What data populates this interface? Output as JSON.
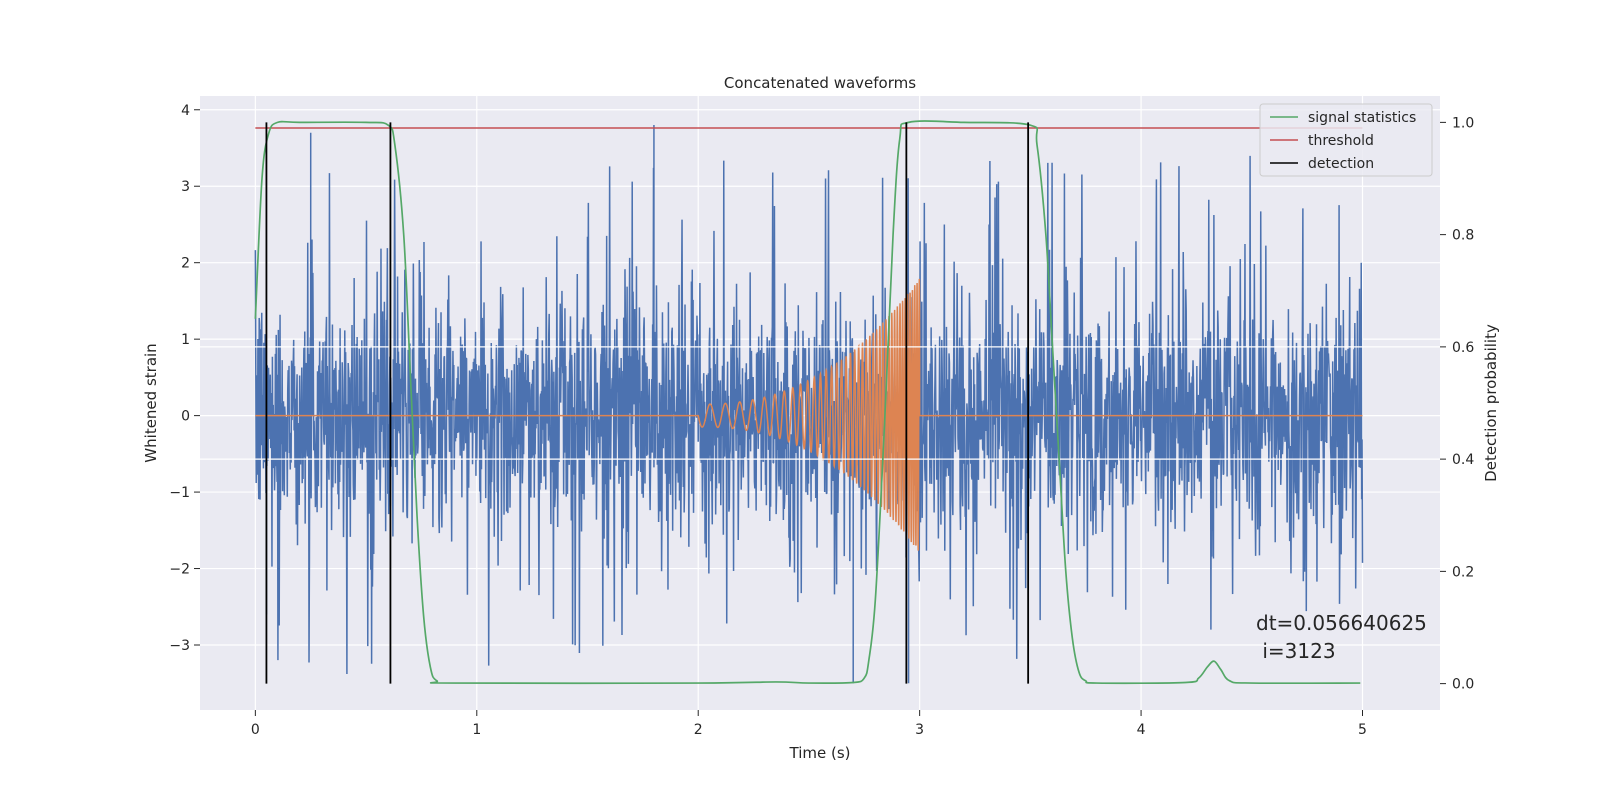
{
  "chart_data": {
    "type": "line",
    "title": "Concatenated waveforms",
    "xlabel": "Time (s)",
    "ylabel": "Whitened strain",
    "ylabel_right": "Detection probability",
    "xlim": [
      -0.25,
      5.35
    ],
    "ylim": [
      -3.85,
      4.18
    ],
    "ylim_right": [
      -0.047,
      1.047
    ],
    "x_ticks": [
      0,
      1,
      2,
      3,
      4,
      5
    ],
    "y_ticks": [
      -3,
      -2,
      -1,
      0,
      1,
      2,
      3,
      4
    ],
    "y_ticks_right": [
      0.0,
      0.2,
      0.4,
      0.6,
      0.8,
      1.0
    ],
    "x_tick_labels": [
      "0",
      "1",
      "2",
      "3",
      "4",
      "5"
    ],
    "y_tick_labels": [
      "−3",
      "−2",
      "−1",
      "0",
      "1",
      "2",
      "3",
      "4"
    ],
    "y_tick_labels_right": [
      "0.0",
      "0.2",
      "0.4",
      "0.6",
      "0.8",
      "1.0"
    ],
    "grid": true,
    "legend_position": "top-right",
    "legend": [
      {
        "label": "signal statistics",
        "color": "#55a868"
      },
      {
        "label": "threshold",
        "color": "#c44e52"
      },
      {
        "label": "detection",
        "color": "#000000"
      }
    ],
    "series": [
      {
        "name": "",
        "kind": "whitened-noise",
        "axis": "left",
        "color": "#4c72b0",
        "x_range": [
          0,
          5
        ],
        "typical_range": [
          -1.5,
          1.5
        ],
        "peaks": [
          {
            "x": 0.25,
            "y": 3.7
          },
          {
            "x": 1.8,
            "y": 3.8
          },
          {
            "x": 0.05,
            "y": -2.6
          },
          {
            "x": 2.7,
            "y": -3.5
          },
          {
            "x": 2.95,
            "y": -3.5
          }
        ]
      },
      {
        "name": "",
        "kind": "chirp",
        "axis": "left",
        "color": "#dd8452",
        "x_range": [
          0,
          5
        ],
        "chirp_start": 2.0,
        "chirp_end": 3.0,
        "amplitude_start": 0.15,
        "amplitude_end": 1.8
      },
      {
        "name": "signal statistics",
        "axis": "right",
        "color": "#55a868",
        "x": [
          0.0,
          0.03,
          0.06,
          0.1,
          0.2,
          0.5,
          0.6,
          0.63,
          0.67,
          0.7,
          0.73,
          0.76,
          0.79,
          0.82,
          0.9,
          2.0,
          2.35,
          2.5,
          2.7,
          2.75,
          2.77,
          2.8,
          2.84,
          2.88,
          2.91,
          2.95,
          3.2,
          3.5,
          3.53,
          3.57,
          3.6,
          3.63,
          3.66,
          3.69,
          3.72,
          3.75,
          3.8,
          4.2,
          4.26,
          4.3,
          4.33,
          4.36,
          4.4,
          4.5,
          4.99
        ],
        "values": [
          0.65,
          0.9,
          0.98,
          1.0,
          1.0,
          1.0,
          0.995,
          0.96,
          0.8,
          0.55,
          0.3,
          0.12,
          0.03,
          0.005,
          0.001,
          0.001,
          0.003,
          0.001,
          0.002,
          0.01,
          0.04,
          0.15,
          0.45,
          0.8,
          0.97,
          1.0,
          1.0,
          0.995,
          0.96,
          0.8,
          0.6,
          0.4,
          0.2,
          0.08,
          0.02,
          0.005,
          0.001,
          0.002,
          0.01,
          0.03,
          0.04,
          0.025,
          0.005,
          0.001,
          0.001
        ]
      },
      {
        "name": "threshold",
        "axis": "right",
        "color": "#c44e52",
        "x": [
          0,
          5
        ],
        "values": [
          0.99,
          0.99
        ]
      }
    ],
    "detections": {
      "name": "detection",
      "color": "#000000",
      "x": [
        0.05,
        0.61,
        2.94,
        3.49
      ],
      "ymin": 0.0,
      "ymax": 1.0
    },
    "white_hlines_right": [
      0.4,
      0.6
    ],
    "annotation": {
      "line1": "dt=0.056640625",
      "line2": " i=3123"
    }
  }
}
